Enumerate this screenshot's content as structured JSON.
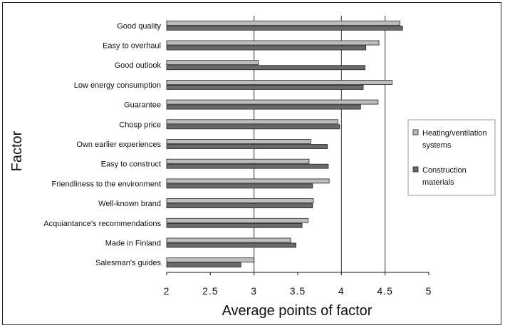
{
  "chart_data": {
    "type": "bar",
    "orientation": "horizontal",
    "title": "",
    "xlabel": "Average points of factor",
    "ylabel": "Factor",
    "xlim": [
      2,
      5
    ],
    "x_ticks": [
      2,
      2.5,
      3,
      3.5,
      4,
      4.5,
      5
    ],
    "x_tick_labels": [
      "2",
      "2.5",
      "3",
      "3.5",
      "4",
      "4.5",
      "5"
    ],
    "grid": "vertical lines at 3, 4, 4.5",
    "legend_position": "right",
    "categories": [
      "Good quality",
      "Easy to overhaul",
      "Good outlook",
      "Low energy consumption",
      "Guarantee",
      "Chosp price",
      "Own earlier experiences",
      "Easy to construct",
      "Friendliness to the environment",
      "Well-known brand",
      "Acquiantance's recommendations",
      "Made in Finland",
      "Salesman's guides"
    ],
    "series": [
      {
        "name": "Heating/ventilation systems",
        "color": "#bdbdbd",
        "values": [
          4.67,
          4.43,
          3.05,
          4.58,
          4.42,
          3.96,
          3.65,
          3.63,
          3.86,
          3.68,
          3.62,
          3.42,
          3.0
        ]
      },
      {
        "name": "Construction materials",
        "color": "#6a6a6a",
        "values": [
          4.7,
          4.28,
          4.27,
          4.25,
          4.22,
          3.98,
          3.84,
          3.85,
          3.67,
          3.67,
          3.55,
          3.48,
          2.85
        ]
      }
    ]
  }
}
